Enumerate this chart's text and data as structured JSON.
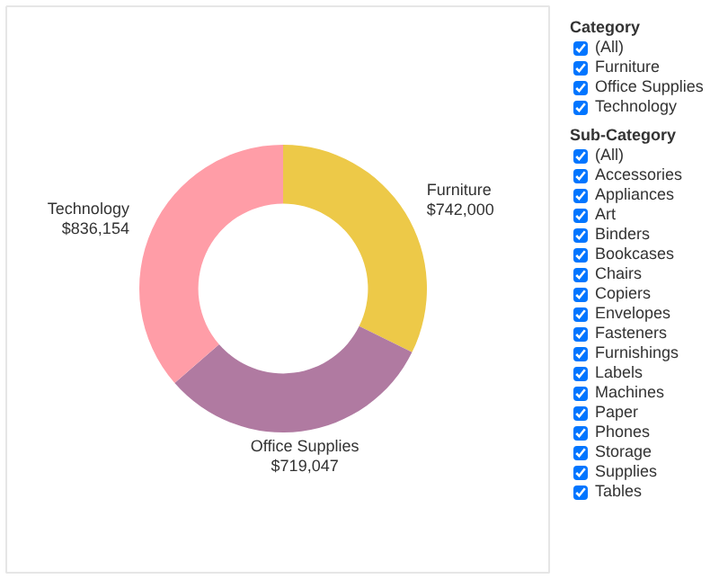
{
  "chart_data": [
    {
      "type": "donut",
      "categories": [
        "Furniture",
        "Office Supplies",
        "Technology"
      ],
      "values": [
        742000,
        719047,
        836154
      ],
      "colors": [
        "#edc948",
        "#b07aa1",
        "#ff9da7"
      ],
      "value_labels": [
        "$742,000",
        "$719,047",
        "$836,154"
      ]
    },
    {
      "type": "other",
      "title": "Category",
      "annotations": [
        "(All)",
        "Furniture",
        "Office Supplies",
        "Technology"
      ]
    },
    {
      "type": "other",
      "title": "Sub-Category",
      "annotations": [
        "(All)",
        "Accessories",
        "Appliances",
        "Art",
        "Binders",
        "Bookcases",
        "Chairs",
        "Copiers",
        "Envelopes",
        "Fasteners",
        "Furnishings",
        "Labels",
        "Machines",
        "Paper",
        "Phones",
        "Storage",
        "Supplies",
        "Tables"
      ]
    }
  ]
}
